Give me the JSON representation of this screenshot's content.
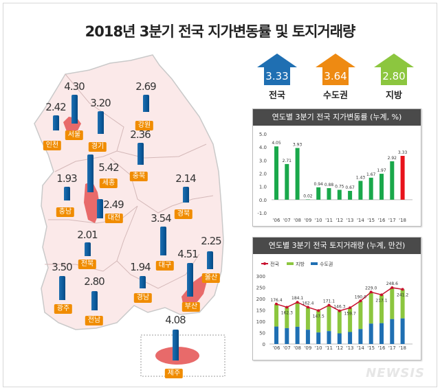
{
  "title": "2018년 3분기 전국 지가변동률 및 토지거래량",
  "summary": [
    {
      "name": "전국",
      "value": "3.33",
      "color": "#1f6fb2"
    },
    {
      "name": "수도권",
      "value": "3.64",
      "color": "#ee8a12"
    },
    {
      "name": "지방",
      "value": "2.80",
      "color": "#8cc63f"
    }
  ],
  "regions": [
    {
      "name": "인천",
      "value": "2.42"
    },
    {
      "name": "서울",
      "value": "4.30"
    },
    {
      "name": "경기",
      "value": "3.20"
    },
    {
      "name": "강원",
      "value": "2.69"
    },
    {
      "name": "충북",
      "value": "2.36"
    },
    {
      "name": "세종",
      "value": "5.42"
    },
    {
      "name": "충남",
      "value": "1.93"
    },
    {
      "name": "대전",
      "value": "2.49"
    },
    {
      "name": "경북",
      "value": "2.14"
    },
    {
      "name": "대구",
      "value": "3.54"
    },
    {
      "name": "전북",
      "value": "2.01"
    },
    {
      "name": "광주",
      "value": "3.50"
    },
    {
      "name": "전남",
      "value": "2.80"
    },
    {
      "name": "경남",
      "value": "1.94"
    },
    {
      "name": "부산",
      "value": "4.51"
    },
    {
      "name": "울산",
      "value": "2.25"
    },
    {
      "name": "제주",
      "value": "4.08"
    }
  ],
  "chart_data": [
    {
      "type": "bar",
      "title": "연도별 3분기 전국 지가변동률 (누계, %)",
      "categories": [
        "'06",
        "'07",
        "'08",
        "'09",
        "'10",
        "'11",
        "'12",
        "'13",
        "'14",
        "'15",
        "'16",
        "'17",
        "'18"
      ],
      "values": [
        4.05,
        2.71,
        3.93,
        0.02,
        0.94,
        0.88,
        0.75,
        0.67,
        1.43,
        1.67,
        1.97,
        2.92,
        3.33
      ],
      "ylim": [
        -1.0,
        5.0
      ],
      "yticks": [
        "5.0",
        "4.0",
        "3.0",
        "2.0",
        "1.0",
        "0.0",
        "-1.0"
      ],
      "colors": {
        "default": "#1aa84b",
        "highlight": "#e8141c"
      }
    },
    {
      "type": "bar",
      "title": "연도별 3분기 전국 토지거래량 (누계, 만건)",
      "categories": [
        "'06",
        "'07",
        "'08",
        "'09",
        "'10",
        "'11",
        "'12",
        "'13",
        "'14",
        "'15",
        "'16",
        "'17",
        "'18"
      ],
      "series": [
        {
          "name": "전국",
          "type": "line",
          "color": "#c8102e",
          "values": [
            176.4,
            162.3,
            184.1,
            162.4,
            147.5,
            171.1,
            146.3,
            159.7,
            190.0,
            229.0,
            217.1,
            248.6,
            241.2
          ]
        },
        {
          "name": "지방",
          "color": "#8cc63f"
        },
        {
          "name": "수도권",
          "color": "#1f6fb2",
          "values": [
            77,
            70,
            76,
            63,
            51,
            57,
            47,
            53,
            66,
            90,
            92,
            110,
            113
          ]
        }
      ],
      "ylim": [
        0,
        300
      ],
      "yticks": [
        "300",
        "250",
        "200",
        "150",
        "100",
        "50",
        "0"
      ]
    }
  ],
  "watermark": "NEWSIS"
}
